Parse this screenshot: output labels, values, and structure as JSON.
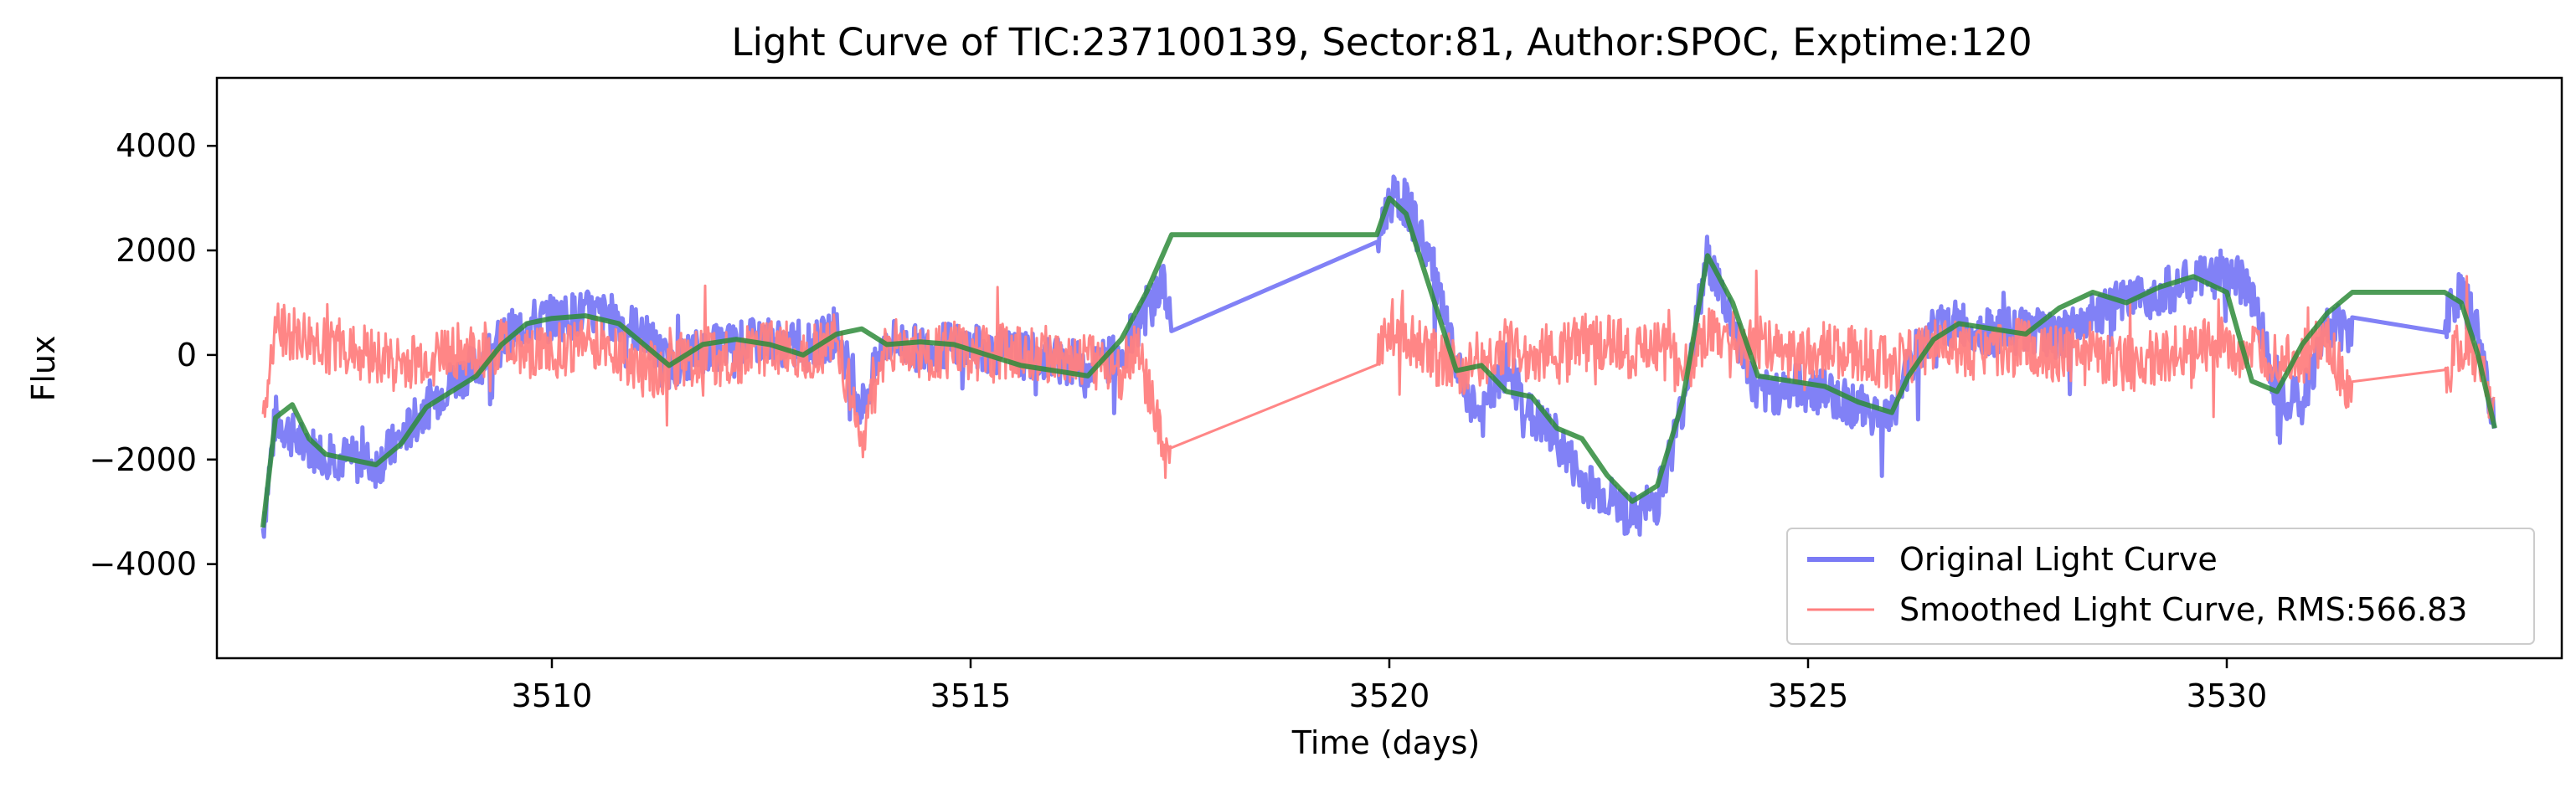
{
  "chart_data": {
    "type": "line",
    "title": "Light Curve of TIC:237100139, Sector:81, Author:SPOC, Exptime:120",
    "xlabel": "Time (days)",
    "ylabel": "Flux",
    "xlim": [
      3506.0,
      3534.0
    ],
    "ylim": [
      -5800,
      5300
    ],
    "xticks": [
      3510,
      3515,
      3520,
      3525,
      3530
    ],
    "yticks": [
      -4000,
      -2000,
      0,
      2000,
      4000
    ],
    "grid": false,
    "legend_position": "lower-right",
    "series": [
      {
        "name": "Original Light Curve",
        "color": "#7a7af5",
        "x": [
          3506.55,
          3506.7,
          3507.0,
          3507.3,
          3507.6,
          3507.9,
          3508.2,
          3508.5,
          3508.8,
          3509.1,
          3509.4,
          3509.7,
          3510.0,
          3510.4,
          3510.8,
          3511.1,
          3511.4,
          3511.8,
          3512.2,
          3512.6,
          3513.0,
          3513.4,
          3513.7,
          3514.0,
          3514.4,
          3514.8,
          3515.2,
          3515.6,
          3516.0,
          3516.4,
          3516.8,
          3517.0,
          3517.3,
          3517.4,
          3519.85,
          3520.0,
          3520.2,
          3520.5,
          3520.8,
          3521.1,
          3521.4,
          3521.7,
          3522.0,
          3522.3,
          3522.6,
          3522.9,
          3523.2,
          3523.5,
          3523.8,
          3524.1,
          3524.4,
          3524.8,
          3525.2,
          3525.6,
          3526.0,
          3526.2,
          3526.5,
          3526.8,
          3527.2,
          3527.6,
          3528.0,
          3528.4,
          3528.8,
          3529.2,
          3529.6,
          3530.0,
          3530.3,
          3530.6,
          3530.9,
          3531.2,
          3531.5,
          3532.6,
          3532.8,
          3533.0,
          3533.2
        ],
        "y": [
          -3300,
          -1200,
          -1700,
          -1900,
          -2000,
          -2100,
          -1600,
          -1000,
          -500,
          -200,
          300,
          600,
          700,
          800,
          700,
          400,
          -200,
          100,
          200,
          300,
          100,
          400,
          -1000,
          300,
          100,
          200,
          100,
          0,
          -100,
          -200,
          0,
          600,
          1400,
          400,
          2100,
          3000,
          2900,
          1800,
          -300,
          -1200,
          -200,
          -1200,
          -1600,
          -2400,
          -2700,
          -3100,
          -2800,
          -1000,
          1900,
          600,
          -800,
          -600,
          -700,
          -1000,
          -1200,
          -200,
          500,
          600,
          400,
          500,
          300,
          800,
          1000,
          1200,
          1400,
          1600,
          1200,
          -700,
          -900,
          600,
          500,
          700,
          1200,
          400,
          -1300
        ]
      },
      {
        "name": "Smoothed Light Curve, RMS:566.83",
        "color": "#ff7f7f",
        "x": [
          3506.55,
          3506.7,
          3507.0,
          3507.3,
          3507.6,
          3507.9,
          3508.2,
          3508.5,
          3508.8,
          3509.1,
          3509.4,
          3509.7,
          3510.0,
          3510.4,
          3510.8,
          3511.1,
          3511.4,
          3511.8,
          3512.2,
          3512.6,
          3513.0,
          3513.4,
          3513.7,
          3514.0,
          3514.4,
          3514.8,
          3515.2,
          3515.6,
          3516.0,
          3516.4,
          3516.8,
          3517.0,
          3517.3,
          3517.4,
          3519.85,
          3520.0,
          3520.2,
          3520.5,
          3520.8,
          3521.1,
          3521.4,
          3521.7,
          3522.0,
          3522.3,
          3522.6,
          3522.9,
          3523.2,
          3523.5,
          3523.8,
          3524.1,
          3524.4,
          3524.8,
          3525.2,
          3525.6,
          3526.0,
          3526.2,
          3526.5,
          3526.8,
          3527.2,
          3527.6,
          3528.0,
          3528.4,
          3528.8,
          3529.2,
          3529.6,
          3530.0,
          3530.3,
          3530.6,
          3530.9,
          3531.2,
          3531.5,
          3532.6,
          3532.8,
          3533.0,
          3533.2
        ],
        "y": [
          -1200,
          500,
          300,
          200,
          100,
          0,
          -200,
          -100,
          100,
          0,
          200,
          100,
          0,
          300,
          100,
          -300,
          -200,
          0,
          -100,
          200,
          0,
          300,
          -1600,
          200,
          0,
          100,
          0,
          100,
          0,
          -100,
          -300,
          200,
          -1900,
          -1900,
          -200,
          600,
          400,
          0,
          -200,
          -300,
          200,
          0,
          100,
          200,
          300,
          0,
          200,
          -300,
          400,
          0,
          200,
          0,
          100,
          0,
          -200,
          0,
          200,
          100,
          0,
          200,
          0,
          100,
          -200,
          0,
          100,
          200,
          0,
          -100,
          0,
          200,
          -700,
          -500,
          200,
          0,
          -1000
        ]
      },
      {
        "name": "",
        "color": "#2e8b3a",
        "x": [
          3506.55,
          3506.7,
          3506.9,
          3507.1,
          3507.3,
          3507.6,
          3507.9,
          3508.2,
          3508.5,
          3508.8,
          3509.1,
          3509.4,
          3509.7,
          3510.0,
          3510.4,
          3510.8,
          3511.1,
          3511.4,
          3511.8,
          3512.2,
          3512.6,
          3513.0,
          3513.4,
          3513.7,
          3514.0,
          3514.4,
          3514.8,
          3515.2,
          3515.6,
          3516.0,
          3516.4,
          3516.8,
          3517.1,
          3517.4,
          3519.85,
          3520.0,
          3520.2,
          3520.5,
          3520.8,
          3521.1,
          3521.4,
          3521.7,
          3522.0,
          3522.3,
          3522.6,
          3522.9,
          3523.2,
          3523.5,
          3523.8,
          3524.1,
          3524.4,
          3524.8,
          3525.2,
          3525.6,
          3526.0,
          3526.2,
          3526.5,
          3526.8,
          3527.2,
          3527.6,
          3528.0,
          3528.4,
          3528.8,
          3529.2,
          3529.6,
          3530.0,
          3530.3,
          3530.6,
          3530.9,
          3531.2,
          3531.5,
          3532.6,
          3532.8,
          3533.0,
          3533.2
        ],
        "y": [
          -3300,
          -1200,
          -950,
          -1600,
          -1900,
          -2000,
          -2100,
          -1700,
          -1000,
          -700,
          -400,
          200,
          600,
          700,
          750,
          600,
          200,
          -200,
          200,
          300,
          200,
          0,
          400,
          500,
          200,
          250,
          200,
          0,
          -200,
          -300,
          -400,
          300,
          1200,
          2300,
          2300,
          3000,
          2700,
          1200,
          -300,
          -200,
          -700,
          -800,
          -1400,
          -1600,
          -2300,
          -2800,
          -2500,
          -900,
          1900,
          1000,
          -400,
          -500,
          -600,
          -900,
          -1100,
          -400,
          300,
          600,
          500,
          400,
          900,
          1200,
          1000,
          1300,
          1500,
          1200,
          -500,
          -700,
          200,
          800,
          1200,
          1200,
          1000,
          0,
          -1400
        ]
      }
    ]
  }
}
